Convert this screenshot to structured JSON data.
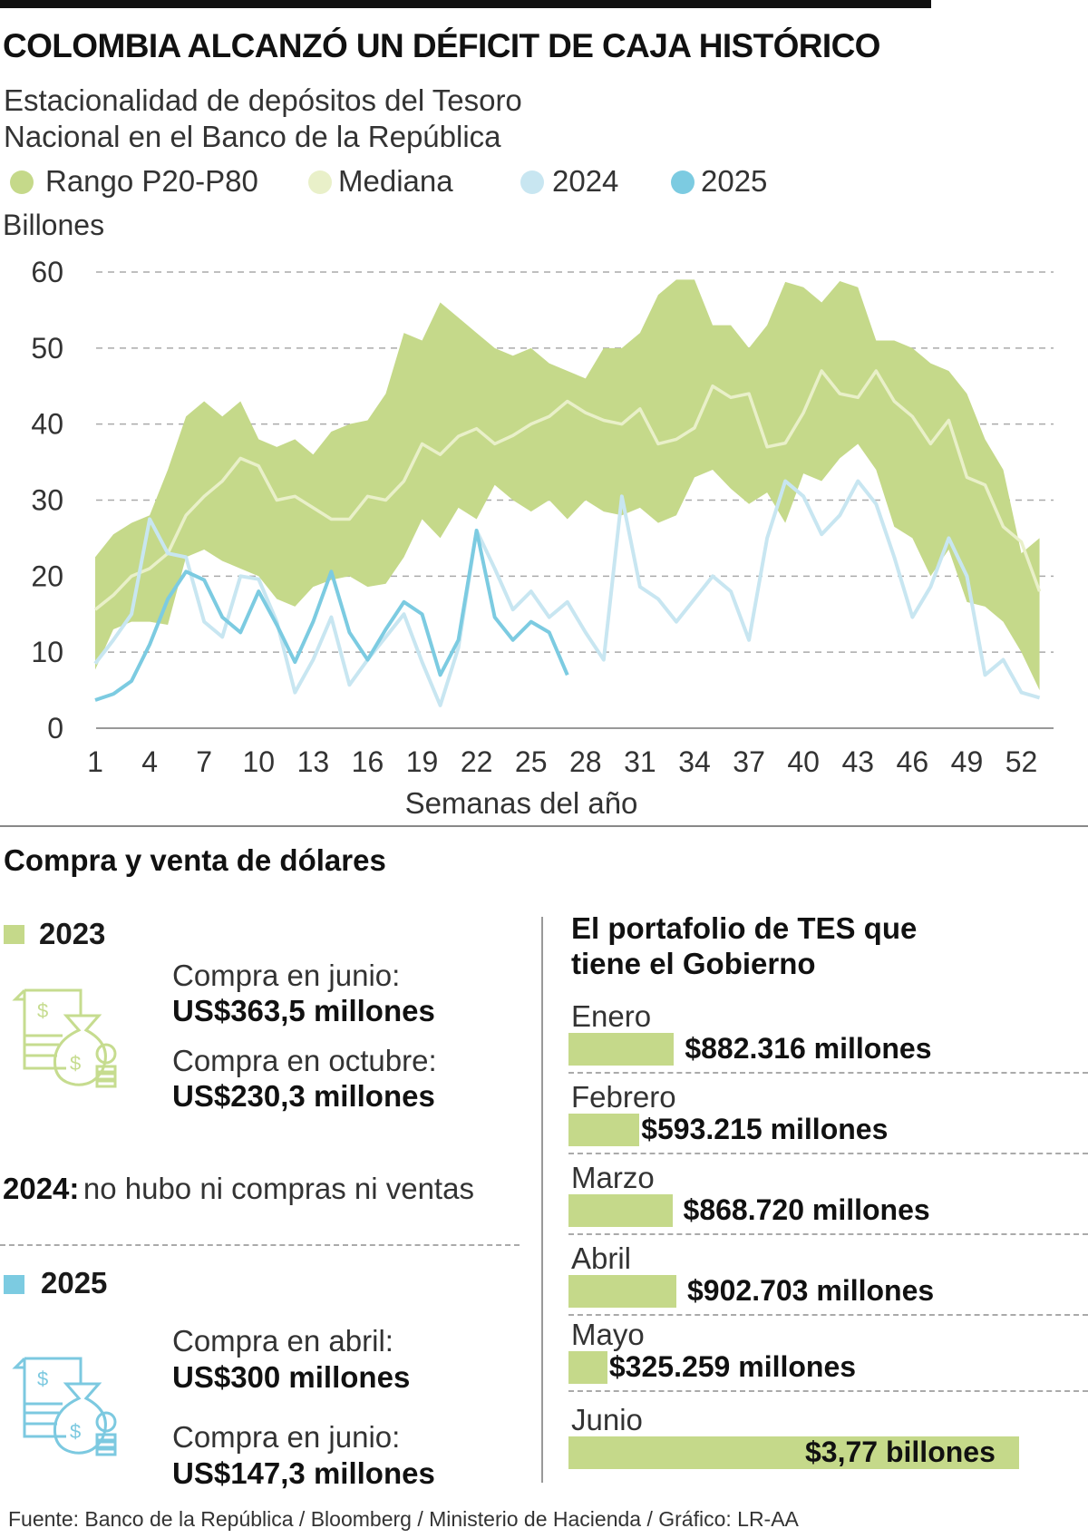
{
  "header": {
    "title": "COLOMBIA ALCANZÓ UN DÉFICIT DE CAJA HISTÓRICO",
    "subtitle_line1": "Estacionalidad de depósitos del Tesoro",
    "subtitle_line2": "Nacional en el Banco de la República"
  },
  "legend": [
    {
      "label": "Rango P20-P80",
      "color": "#c5d98a"
    },
    {
      "label": "Mediana",
      "color": "#e9f0c9"
    },
    {
      "label": "2024",
      "color": "#c8e6f1"
    },
    {
      "label": "2025",
      "color": "#7ccbe1"
    }
  ],
  "chart_data": {
    "type": "area",
    "ylabel": "Billones",
    "xlabel": "Semanas del año",
    "ylim": [
      0,
      60
    ],
    "yticks": [
      "0",
      "10",
      "20",
      "30",
      "40",
      "50",
      "60"
    ],
    "xticks": [
      "1",
      "4",
      "7",
      "10",
      "13",
      "16",
      "19",
      "22",
      "25",
      "28",
      "31",
      "34",
      "37",
      "40",
      "43",
      "46",
      "49",
      "52"
    ],
    "grid": "horizontal dashed",
    "legend_position": "top",
    "weeks_first": 1,
    "band": {
      "name": "Rango P20-P80",
      "color": "#c5d98a",
      "upper": [
        22.5,
        25.5,
        27,
        28,
        34,
        41,
        43,
        41,
        43,
        38,
        37,
        38,
        36,
        39,
        40,
        40.5,
        44,
        52,
        51,
        56,
        54,
        52,
        50,
        49,
        50,
        48,
        47,
        46,
        50,
        50,
        52,
        57,
        59,
        59,
        53,
        53,
        50,
        53,
        58.7,
        58,
        56,
        58.8,
        58,
        51,
        51,
        50,
        48,
        47,
        44,
        38,
        34,
        23,
        25
      ],
      "lower": [
        7.7,
        13,
        14,
        14,
        13.6,
        22.5,
        23.5,
        22,
        21,
        20,
        17,
        16,
        18.6,
        19.5,
        20,
        18.6,
        19,
        22.5,
        27.5,
        25,
        29,
        27.5,
        32,
        30,
        28.5,
        30,
        27.5,
        30,
        28.5,
        28,
        29,
        27,
        28,
        33,
        34,
        31.5,
        29.5,
        31,
        27,
        33.5,
        32.5,
        35.5,
        37.4,
        34,
        26.5,
        25,
        20,
        23.5,
        16.6,
        16,
        14,
        10,
        5
      ]
    },
    "series": [
      {
        "name": "Mediana",
        "color": "#e9f0c9",
        "values": [
          15.6,
          17.5,
          20,
          21,
          23,
          28,
          30.5,
          32.5,
          35.5,
          34.5,
          30,
          30.5,
          29,
          27.5,
          27.5,
          30.5,
          30,
          32.5,
          37.4,
          36,
          38.4,
          39.4,
          37.4,
          38.5,
          40,
          41,
          43,
          41.5,
          40.5,
          40,
          42,
          37.4,
          38,
          39.5,
          45,
          43.5,
          44,
          37,
          37.5,
          41.5,
          47,
          44,
          43.5,
          47,
          43,
          41,
          37.4,
          40.5,
          33,
          32,
          26.5,
          24.5,
          18
        ]
      },
      {
        "name": "2024",
        "color": "#c8e6f1",
        "values": [
          8.5,
          11.6,
          15,
          27.5,
          23,
          22.5,
          14,
          12,
          20,
          19.6,
          14,
          4.7,
          9,
          14.6,
          5.7,
          9,
          12,
          15,
          8.7,
          3,
          10.6,
          26,
          21,
          15.6,
          18,
          14.6,
          16.6,
          12.6,
          9,
          30.5,
          18.6,
          17,
          14,
          17,
          20,
          18,
          11.6,
          25,
          32.5,
          30.5,
          25.5,
          28,
          32.5,
          29.5,
          22.5,
          14.6,
          18.6,
          25,
          20,
          7,
          9,
          4.7,
          4
        ]
      },
      {
        "name": "2025",
        "color": "#7ccbe1",
        "values": [
          3.7,
          4.5,
          6.2,
          11,
          17,
          20.6,
          19.5,
          14.6,
          12.6,
          18,
          13.6,
          8.7,
          14,
          20.6,
          12.6,
          9,
          13,
          16.6,
          15,
          7,
          11.6,
          26,
          14.6,
          11.6,
          14,
          12.6,
          7
        ]
      }
    ]
  },
  "dollars": {
    "title": "Compra y venta de dólares",
    "y2023": {
      "year": "2023",
      "color": "#c5d98a",
      "l1": "Compra en junio:",
      "v1": "US$363,5 millones",
      "l2": "Compra en octubre:",
      "v2": "US$230,3 millones"
    },
    "y2024": {
      "year": "2024:",
      "text": "no hubo ni compras ni ventas"
    },
    "y2025": {
      "year": "2025",
      "color": "#7ccbe1",
      "l1": "Compra en abril:",
      "v1": "US$300 millones",
      "l2": "Compra en junio:",
      "v2": "US$147,3 millones"
    }
  },
  "tes": {
    "title_line1": "El portafolio de TES que",
    "title_line2": "tiene el Gobierno",
    "chart_data": {
      "type": "bar",
      "unit": "millones de pesos",
      "categories": [
        "Enero",
        "Febrero",
        "Marzo",
        "Abril",
        "Mayo",
        "Junio"
      ],
      "values": [
        882316,
        593215,
        868720,
        902703,
        325259,
        3770000
      ],
      "labels": [
        "$882.316 millones",
        "$593.215 millones",
        "$868.720 millones",
        "$902.703 millones",
        "$325.259 millones",
        "$3,77 billones"
      ]
    }
  },
  "source": "Fuente: Banco de la República / Bloomberg / Ministerio de Hacienda / Gráfico: LR-AA"
}
